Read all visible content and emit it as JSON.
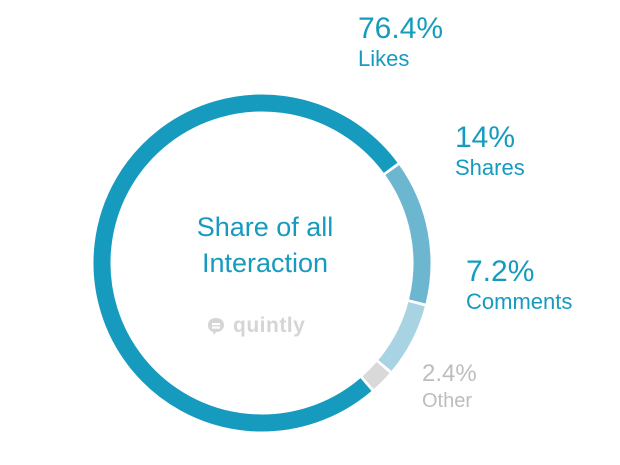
{
  "chart_data": {
    "type": "pie",
    "title": "Share of all Interaction",
    "title_lines": [
      "Share of all",
      "Interaction"
    ],
    "slices": [
      {
        "label": "Likes",
        "value": 76.4,
        "display": "76.4%",
        "color": "#169bbf"
      },
      {
        "label": "Shares",
        "value": 14,
        "display": "14%",
        "color": "#6db6d0"
      },
      {
        "label": "Comments",
        "value": 7.2,
        "display": "7.2%",
        "color": "#a8d3e3"
      },
      {
        "label": "Other",
        "value": 2.4,
        "display": "2.4%",
        "color": "#d9d9d9"
      }
    ]
  },
  "watermark": {
    "text": "quintly",
    "icon": "quintly-logo-icon"
  },
  "colors": {
    "label_other": "#bdbdbd"
  }
}
